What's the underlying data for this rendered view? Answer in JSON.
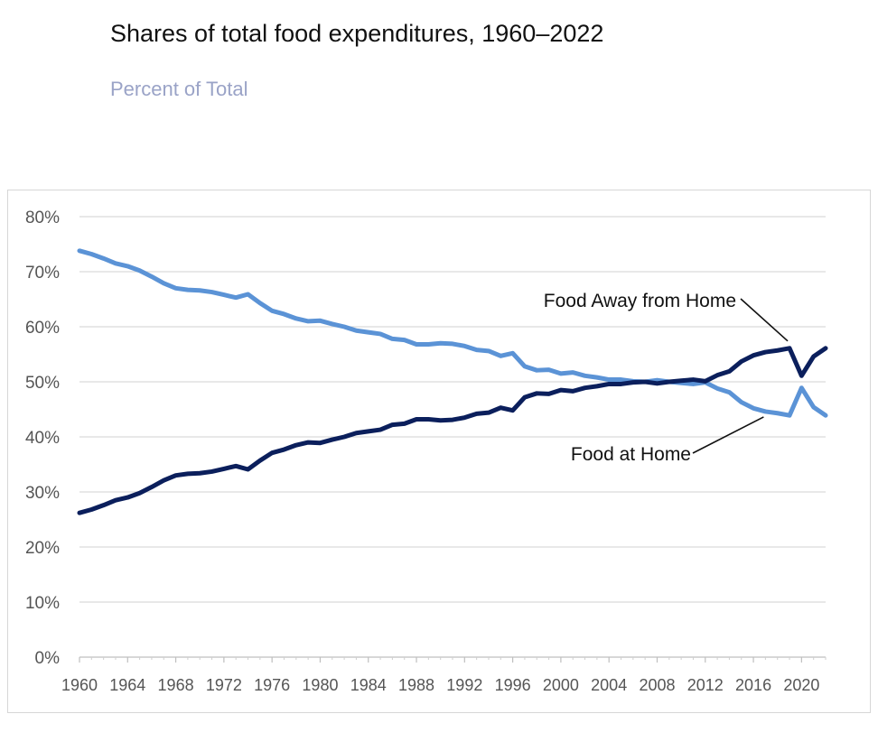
{
  "header": {
    "title": "Shares of total food expenditures, 1960–2022",
    "subtitle": "Percent of Total"
  },
  "colors": {
    "away": "#0b1f5c",
    "home": "#5b93d6",
    "grid": "#d9d9d9",
    "axis_text": "#555555",
    "annotation_text": "#111111"
  },
  "chart_data": {
    "type": "line",
    "title": "Shares of total food expenditures, 1960–2022",
    "subtitle": "Percent of Total",
    "xlabel": "",
    "ylabel": "",
    "ylim": [
      0,
      80
    ],
    "y_ticks": [
      0,
      10,
      20,
      30,
      40,
      50,
      60,
      70,
      80
    ],
    "y_tick_labels": [
      "0%",
      "10%",
      "20%",
      "30%",
      "40%",
      "50%",
      "60%",
      "70%",
      "80%"
    ],
    "x_ticks": [
      1960,
      1964,
      1968,
      1972,
      1976,
      1980,
      1984,
      1988,
      1992,
      1996,
      2000,
      2004,
      2008,
      2012,
      2016,
      2020
    ],
    "x_tick_labels": [
      "1960",
      "1964",
      "1968",
      "1972",
      "1976",
      "1980",
      "1984",
      "1988",
      "1992",
      "1996",
      "2000",
      "2004",
      "2008",
      "2012",
      "2016",
      "2020"
    ],
    "grid": true,
    "x": [
      1960,
      1961,
      1962,
      1963,
      1964,
      1965,
      1966,
      1967,
      1968,
      1969,
      1970,
      1971,
      1972,
      1973,
      1974,
      1975,
      1976,
      1977,
      1978,
      1979,
      1980,
      1981,
      1982,
      1983,
      1984,
      1985,
      1986,
      1987,
      1988,
      1989,
      1990,
      1991,
      1992,
      1993,
      1994,
      1995,
      1996,
      1997,
      1998,
      1999,
      2000,
      2001,
      2002,
      2003,
      2004,
      2005,
      2006,
      2007,
      2008,
      2009,
      2010,
      2011,
      2012,
      2013,
      2014,
      2015,
      2016,
      2017,
      2018,
      2019,
      2020,
      2021,
      2022
    ],
    "series": [
      {
        "name": "Food Away from Home",
        "color": "#0b1f5c",
        "values": [
          26.2,
          26.8,
          27.6,
          28.5,
          29.0,
          29.8,
          30.9,
          32.1,
          33.0,
          33.3,
          33.4,
          33.7,
          34.2,
          34.7,
          34.1,
          35.7,
          37.1,
          37.7,
          38.5,
          39.0,
          38.9,
          39.5,
          40.0,
          40.7,
          41.0,
          41.3,
          42.2,
          42.4,
          43.2,
          43.2,
          43.0,
          43.1,
          43.5,
          44.2,
          44.4,
          45.3,
          44.8,
          47.2,
          47.9,
          47.8,
          48.5,
          48.3,
          48.9,
          49.2,
          49.6,
          49.6,
          49.9,
          50.0,
          49.7,
          50.0,
          50.2,
          50.4,
          50.1,
          51.2,
          51.9,
          53.7,
          54.8,
          55.4,
          55.7,
          56.1,
          51.1,
          54.6,
          56.1
        ]
      },
      {
        "name": "Food at Home",
        "color": "#5b93d6",
        "values": [
          73.8,
          73.2,
          72.4,
          71.5,
          71.0,
          70.2,
          69.1,
          67.9,
          67.0,
          66.7,
          66.6,
          66.3,
          65.8,
          65.3,
          65.9,
          64.3,
          62.9,
          62.3,
          61.5,
          61.0,
          61.1,
          60.5,
          60.0,
          59.3,
          59.0,
          58.7,
          57.8,
          57.6,
          56.8,
          56.8,
          57.0,
          56.9,
          56.5,
          55.8,
          55.6,
          54.7,
          55.2,
          52.8,
          52.1,
          52.2,
          51.5,
          51.7,
          51.1,
          50.8,
          50.4,
          50.4,
          50.1,
          50.0,
          50.3,
          50.0,
          49.8,
          49.6,
          49.9,
          48.8,
          48.1,
          46.3,
          45.2,
          44.6,
          44.3,
          43.9,
          48.9,
          45.4,
          43.9
        ]
      }
    ],
    "annotations": [
      {
        "text": "Food Away from Home",
        "series": "Food Away from Home",
        "at_x": 2019
      },
      {
        "text": "Food at Home",
        "series": "Food at Home",
        "at_x": 2017
      }
    ]
  }
}
